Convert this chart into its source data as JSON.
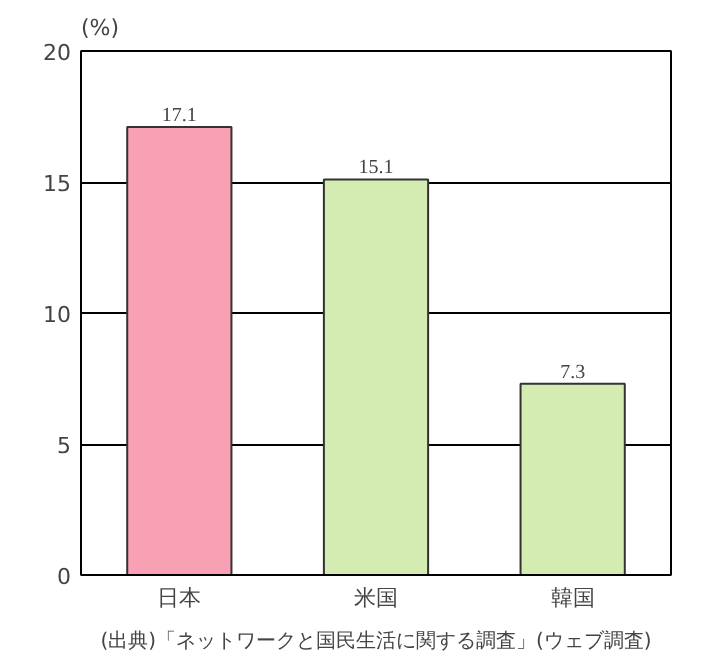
{
  "chart_data": {
    "type": "bar",
    "ylabel": "(%)",
    "categories": [
      "日本",
      "米国",
      "韓国"
    ],
    "values": [
      17.1,
      15.1,
      7.3
    ],
    "colors": [
      "#f8a0b4",
      "#d4ecb2",
      "#d4ecb2"
    ],
    "ylim": [
      0,
      20
    ],
    "yticks": [
      0,
      5,
      10,
      15,
      20
    ],
    "grid": "y",
    "data_labels": true,
    "annotations": [
      "(出典)「ネットワークと国民生活に関する調査」(ウェブ調査)"
    ]
  }
}
